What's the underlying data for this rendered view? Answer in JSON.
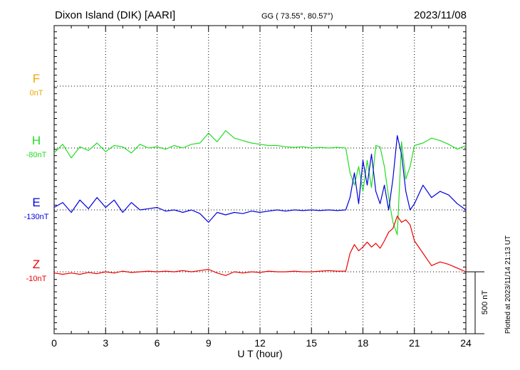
{
  "header": {
    "station": "Dixon Island (DIK)  [AARI]",
    "coords": "GG ( 73.55°,  80.57°)",
    "date": "2023/11/08"
  },
  "side_note": "Plotted at 2023/11/14 21:13 UT",
  "scale_label": "500 nT",
  "colors": {
    "F": "#f0a800",
    "H": "#22dd22",
    "E": "#0000dd",
    "Z": "#ee0000"
  },
  "chart_data": {
    "type": "line",
    "title": "Dixon Island (DIK)  [AARI]",
    "xlabel": "U T (hour)",
    "xlim": [
      0,
      24
    ],
    "x_ticks": [
      "0",
      "3",
      "6",
      "9",
      "12",
      "15",
      "18",
      "21",
      "24"
    ],
    "y_unit": "nT",
    "scale_bar_nT": 500,
    "series": [
      {
        "name": "F",
        "baseline_label": "0nT",
        "x": [],
        "y": []
      },
      {
        "name": "H",
        "baseline_label": "-80nT",
        "x": [
          0,
          0.5,
          1,
          1.5,
          2,
          2.5,
          3,
          3.5,
          4,
          4.5,
          5,
          5.5,
          6,
          6.5,
          7,
          7.5,
          8,
          8.5,
          9,
          9.5,
          10,
          10.5,
          11,
          11.5,
          12,
          12.5,
          13,
          13.5,
          14,
          14.5,
          15,
          15.5,
          16,
          16.5,
          17,
          17.25,
          17.5,
          17.75,
          18,
          18.25,
          18.5,
          18.75,
          19,
          19.25,
          19.5,
          19.75,
          20,
          20.25,
          20.5,
          20.75,
          21,
          21.5,
          22,
          22.5,
          23,
          23.5,
          24
        ],
        "y": [
          -40,
          30,
          -80,
          10,
          -20,
          40,
          -30,
          20,
          10,
          -40,
          30,
          0,
          10,
          -10,
          20,
          0,
          30,
          40,
          120,
          50,
          140,
          80,
          60,
          40,
          30,
          20,
          20,
          10,
          5,
          10,
          0,
          5,
          0,
          5,
          0,
          -200,
          -300,
          -150,
          -350,
          -100,
          -320,
          20,
          10,
          -150,
          -400,
          -600,
          -700,
          50,
          -250,
          -150,
          20,
          40,
          80,
          60,
          30,
          -10,
          20
        ]
      },
      {
        "name": "E",
        "baseline_label": "-130nT",
        "x": [
          0,
          0.5,
          1,
          1.5,
          2,
          2.5,
          3,
          3.5,
          4,
          4.5,
          5,
          5.5,
          6,
          6.5,
          7,
          7.5,
          8,
          8.5,
          9,
          9.5,
          10,
          10.5,
          11,
          11.5,
          12,
          12.5,
          13,
          13.5,
          14,
          14.5,
          15,
          15.5,
          16,
          16.5,
          17,
          17.25,
          17.5,
          17.75,
          18,
          18.25,
          18.5,
          18.75,
          19,
          19.25,
          19.5,
          19.75,
          20,
          20.25,
          20.5,
          20.75,
          21,
          21.5,
          22,
          22.5,
          23,
          23.5,
          24
        ],
        "y": [
          20,
          60,
          -20,
          80,
          10,
          100,
          20,
          80,
          -20,
          60,
          0,
          10,
          20,
          -10,
          0,
          -20,
          0,
          -30,
          -100,
          -20,
          -40,
          -20,
          -30,
          -10,
          -20,
          -10,
          0,
          -10,
          0,
          -5,
          0,
          -5,
          0,
          -5,
          0,
          100,
          300,
          50,
          400,
          200,
          450,
          150,
          50,
          200,
          0,
          250,
          600,
          450,
          150,
          0,
          50,
          200,
          100,
          150,
          120,
          50,
          0
        ]
      },
      {
        "name": "Z",
        "baseline_label": "-10nT",
        "x": [
          0,
          0.5,
          1,
          1.5,
          2,
          2.5,
          3,
          3.5,
          4,
          4.5,
          5,
          5.5,
          6,
          6.5,
          7,
          7.5,
          8,
          8.5,
          9,
          9.5,
          10,
          10.5,
          11,
          11.5,
          12,
          12.5,
          13,
          13.5,
          14,
          14.5,
          15,
          15.5,
          16,
          16.5,
          17,
          17.25,
          17.5,
          17.75,
          18,
          18.25,
          18.5,
          18.75,
          19,
          19.25,
          19.5,
          19.75,
          20,
          20.25,
          20.5,
          20.75,
          21,
          21.5,
          22,
          22.5,
          23,
          23.5,
          24
        ],
        "y": [
          -10,
          -20,
          -10,
          -20,
          -5,
          -15,
          0,
          -10,
          5,
          -5,
          0,
          5,
          0,
          5,
          0,
          10,
          0,
          10,
          20,
          -10,
          -30,
          0,
          -10,
          0,
          -5,
          5,
          0,
          0,
          5,
          0,
          0,
          5,
          10,
          5,
          5,
          150,
          220,
          170,
          200,
          240,
          200,
          230,
          190,
          250,
          320,
          350,
          450,
          400,
          420,
          380,
          250,
          150,
          50,
          80,
          60,
          30,
          0
        ]
      }
    ]
  }
}
